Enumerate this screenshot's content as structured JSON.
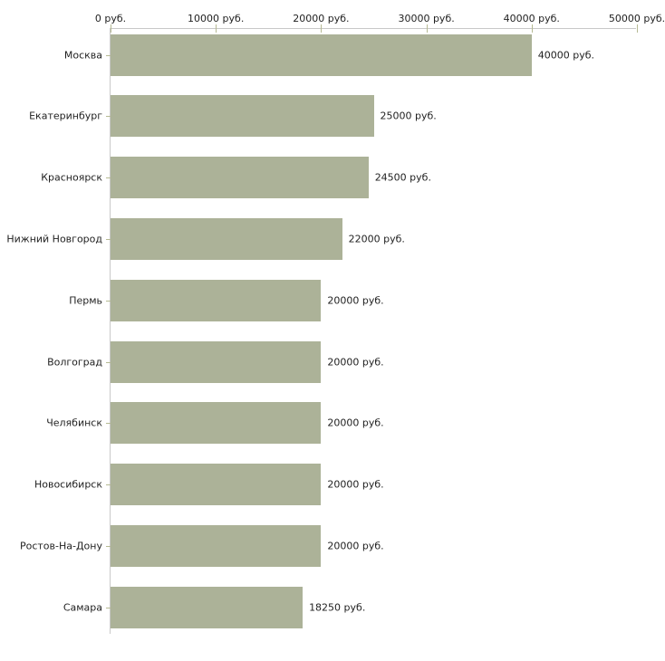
{
  "chart_data": {
    "type": "bar",
    "orientation": "horizontal",
    "title": "",
    "xlabel": "",
    "ylabel": "",
    "unit": "руб.",
    "categories": [
      "Москва",
      "Екатеринбург",
      "Красноярск",
      "Нижний Новгород",
      "Пермь",
      "Волгоград",
      "Челябинск",
      "Новосибирск",
      "Ростов-На-Дону",
      "Самара"
    ],
    "values": [
      40000,
      25000,
      24500,
      22000,
      20000,
      20000,
      20000,
      20000,
      20000,
      18250
    ],
    "value_labels": [
      "40000 руб.",
      "25000 руб.",
      "24500 руб.",
      "22000 руб.",
      "20000 руб.",
      "20000 руб.",
      "20000 руб.",
      "20000 руб.",
      "20000 руб.",
      "18250 руб."
    ],
    "x_ticks": [
      0,
      10000,
      20000,
      30000,
      40000,
      50000
    ],
    "x_tick_labels": [
      "0 руб.",
      "10000 руб.",
      "20000 руб.",
      "30000 руб.",
      "40000 руб.",
      "50000 руб."
    ],
    "xlim": [
      0,
      50000
    ],
    "grid": false,
    "legend": "none",
    "colors": {
      "bar": "#acb298",
      "axis_line": "#c8c8c8",
      "tick_mark": "#b6ba93",
      "text": "#1f1f1f",
      "background": "#ffffff"
    }
  }
}
